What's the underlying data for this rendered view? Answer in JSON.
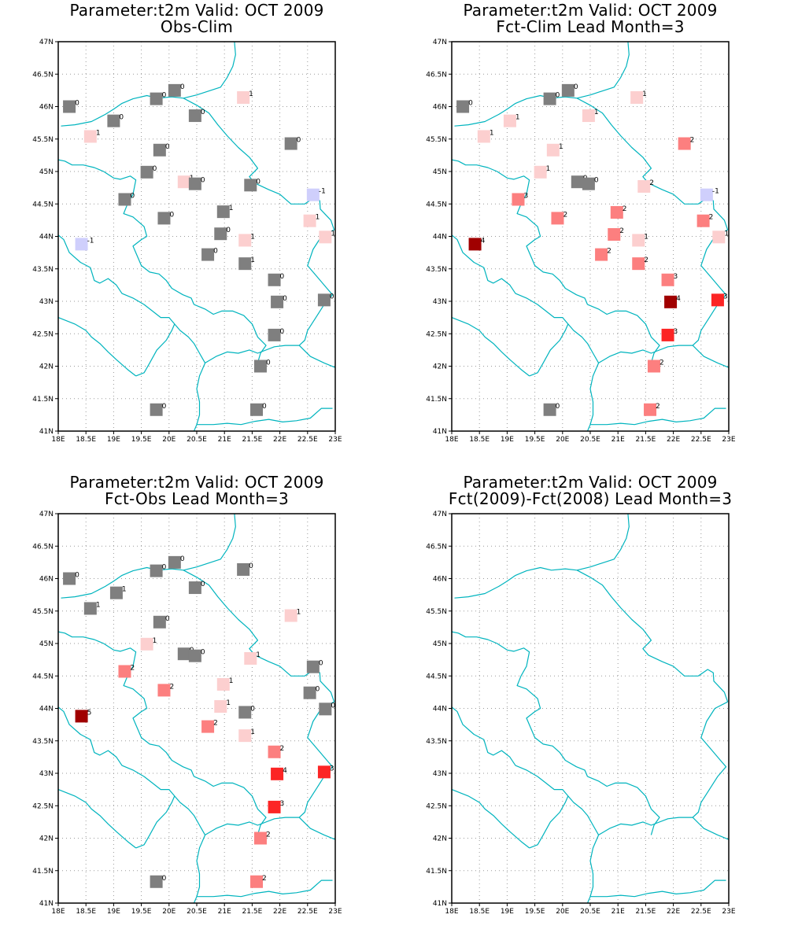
{
  "panels": [
    {
      "title": "Parameter:t2m  Valid: OCT 2009",
      "subtitle": "Obs-Clim",
      "stations": [
        {
          "lon": 18.2,
          "lat": 46.0,
          "v": "0",
          "c": "#7f7f7f"
        },
        {
          "lon": 19.0,
          "lat": 45.78,
          "v": "0",
          "c": "#7f7f7f"
        },
        {
          "lon": 19.77,
          "lat": 46.12,
          "v": "0",
          "c": "#7f7f7f"
        },
        {
          "lon": 20.1,
          "lat": 46.25,
          "v": "0",
          "c": "#7f7f7f"
        },
        {
          "lon": 20.47,
          "lat": 45.86,
          "v": "0",
          "c": "#7f7f7f"
        },
        {
          "lon": 21.34,
          "lat": 46.14,
          "v": "1",
          "c": "#fccfcf"
        },
        {
          "lon": 18.58,
          "lat": 45.54,
          "v": "1",
          "c": "#fccfcf"
        },
        {
          "lon": 19.83,
          "lat": 45.33,
          "v": "0",
          "c": "#7f7f7f"
        },
        {
          "lon": 19.6,
          "lat": 44.99,
          "v": "0",
          "c": "#7f7f7f"
        },
        {
          "lon": 20.27,
          "lat": 44.84,
          "v": "1",
          "c": "#fccfcf"
        },
        {
          "lon": 20.47,
          "lat": 44.81,
          "v": "0",
          "c": "#7f7f7f"
        },
        {
          "lon": 21.47,
          "lat": 44.79,
          "v": "0",
          "c": "#7f7f7f"
        },
        {
          "lon": 22.2,
          "lat": 45.43,
          "v": "0",
          "c": "#7f7f7f"
        },
        {
          "lon": 22.6,
          "lat": 44.64,
          "v": "-1",
          "c": "#cfcffc"
        },
        {
          "lon": 19.2,
          "lat": 44.57,
          "v": "0",
          "c": "#7f7f7f"
        },
        {
          "lon": 19.91,
          "lat": 44.28,
          "v": "0",
          "c": "#7f7f7f"
        },
        {
          "lon": 20.98,
          "lat": 44.38,
          "v": "1",
          "c": "#7f7f7f"
        },
        {
          "lon": 20.93,
          "lat": 44.04,
          "v": "0",
          "c": "#7f7f7f"
        },
        {
          "lon": 21.37,
          "lat": 43.94,
          "v": "1",
          "c": "#fccfcf"
        },
        {
          "lon": 22.54,
          "lat": 44.24,
          "v": "1",
          "c": "#fccfcf"
        },
        {
          "lon": 22.82,
          "lat": 43.99,
          "v": "1",
          "c": "#fccfcf"
        },
        {
          "lon": 18.42,
          "lat": 43.88,
          "v": "-1",
          "c": "#cfcffc"
        },
        {
          "lon": 20.7,
          "lat": 43.72,
          "v": "0",
          "c": "#7f7f7f"
        },
        {
          "lon": 21.37,
          "lat": 43.58,
          "v": "1",
          "c": "#7f7f7f"
        },
        {
          "lon": 21.9,
          "lat": 43.33,
          "v": "0",
          "c": "#7f7f7f"
        },
        {
          "lon": 21.95,
          "lat": 42.99,
          "v": "0",
          "c": "#7f7f7f"
        },
        {
          "lon": 22.8,
          "lat": 43.02,
          "v": "0",
          "c": "#7f7f7f"
        },
        {
          "lon": 21.9,
          "lat": 42.48,
          "v": "0",
          "c": "#7f7f7f"
        },
        {
          "lon": 21.65,
          "lat": 42.0,
          "v": "0",
          "c": "#7f7f7f"
        },
        {
          "lon": 19.77,
          "lat": 41.33,
          "v": "0",
          "c": "#7f7f7f"
        },
        {
          "lon": 21.58,
          "lat": 41.33,
          "v": "0",
          "c": "#7f7f7f"
        }
      ]
    },
    {
      "title": "Parameter:t2m  Valid: OCT 2009",
      "subtitle": "Fct-Clim  Lead Month=3",
      "stations": [
        {
          "lon": 18.2,
          "lat": 46.0,
          "v": "0",
          "c": "#7f7f7f"
        },
        {
          "lon": 19.77,
          "lat": 46.12,
          "v": "0",
          "c": "#7f7f7f"
        },
        {
          "lon": 20.1,
          "lat": 46.25,
          "v": "0",
          "c": "#7f7f7f"
        },
        {
          "lon": 21.34,
          "lat": 46.14,
          "v": "1",
          "c": "#fccfcf"
        },
        {
          "lon": 19.05,
          "lat": 45.78,
          "v": "1",
          "c": "#fccfcf"
        },
        {
          "lon": 20.47,
          "lat": 45.86,
          "v": "1",
          "c": "#fccfcf"
        },
        {
          "lon": 18.58,
          "lat": 45.54,
          "v": "1",
          "c": "#fccfcf"
        },
        {
          "lon": 19.83,
          "lat": 45.33,
          "v": "1",
          "c": "#fccfcf"
        },
        {
          "lon": 22.2,
          "lat": 45.43,
          "v": "2",
          "c": "#fc7f7f"
        },
        {
          "lon": 19.6,
          "lat": 44.99,
          "v": "1",
          "c": "#fccfcf"
        },
        {
          "lon": 20.27,
          "lat": 44.84,
          "v": "0",
          "c": "#7f7f7f"
        },
        {
          "lon": 20.47,
          "lat": 44.81,
          "v": "0",
          "c": "#7f7f7f"
        },
        {
          "lon": 21.47,
          "lat": 44.77,
          "v": "2",
          "c": "#fccfcf"
        },
        {
          "lon": 22.6,
          "lat": 44.64,
          "v": "-1",
          "c": "#cfcffc"
        },
        {
          "lon": 19.2,
          "lat": 44.57,
          "v": "3",
          "c": "#fc7f7f"
        },
        {
          "lon": 19.91,
          "lat": 44.28,
          "v": "2",
          "c": "#fc7f7f"
        },
        {
          "lon": 20.98,
          "lat": 44.37,
          "v": "2",
          "c": "#fc7f7f"
        },
        {
          "lon": 22.54,
          "lat": 44.24,
          "v": "2",
          "c": "#fc7f7f"
        },
        {
          "lon": 20.93,
          "lat": 44.03,
          "v": "2",
          "c": "#fc7f7f"
        },
        {
          "lon": 21.37,
          "lat": 43.94,
          "v": "1",
          "c": "#fccfcf"
        },
        {
          "lon": 22.82,
          "lat": 43.99,
          "v": "1",
          "c": "#fccfcf"
        },
        {
          "lon": 18.42,
          "lat": 43.88,
          "v": "4",
          "c": "#a00000"
        },
        {
          "lon": 20.7,
          "lat": 43.72,
          "v": "2",
          "c": "#fc7f7f"
        },
        {
          "lon": 21.37,
          "lat": 43.58,
          "v": "2",
          "c": "#fc7f7f"
        },
        {
          "lon": 21.9,
          "lat": 43.33,
          "v": "3",
          "c": "#fc7f7f"
        },
        {
          "lon": 21.95,
          "lat": 42.99,
          "v": "4",
          "c": "#a00000"
        },
        {
          "lon": 22.8,
          "lat": 43.02,
          "v": "3",
          "c": "#fc2525"
        },
        {
          "lon": 21.9,
          "lat": 42.48,
          "v": "3",
          "c": "#fc2525"
        },
        {
          "lon": 21.65,
          "lat": 42.0,
          "v": "2",
          "c": "#fc7f7f"
        },
        {
          "lon": 19.77,
          "lat": 41.33,
          "v": "0",
          "c": "#7f7f7f"
        },
        {
          "lon": 21.58,
          "lat": 41.33,
          "v": "2",
          "c": "#fc7f7f"
        }
      ]
    },
    {
      "title": "Parameter:t2m  Valid: OCT 2009",
      "subtitle": "Fct-Obs  Lead Month=3",
      "stations": [
        {
          "lon": 18.2,
          "lat": 46.0,
          "v": "0",
          "c": "#7f7f7f"
        },
        {
          "lon": 19.77,
          "lat": 46.12,
          "v": "0",
          "c": "#7f7f7f"
        },
        {
          "lon": 20.1,
          "lat": 46.25,
          "v": "0",
          "c": "#7f7f7f"
        },
        {
          "lon": 21.34,
          "lat": 46.14,
          "v": "0",
          "c": "#7f7f7f"
        },
        {
          "lon": 19.05,
          "lat": 45.78,
          "v": "1",
          "c": "#7f7f7f"
        },
        {
          "lon": 20.47,
          "lat": 45.86,
          "v": "0",
          "c": "#7f7f7f"
        },
        {
          "lon": 18.58,
          "lat": 45.54,
          "v": "1",
          "c": "#7f7f7f"
        },
        {
          "lon": 22.2,
          "lat": 45.43,
          "v": "1",
          "c": "#fccfcf"
        },
        {
          "lon": 19.83,
          "lat": 45.33,
          "v": "0",
          "c": "#7f7f7f"
        },
        {
          "lon": 19.6,
          "lat": 44.99,
          "v": "1",
          "c": "#fccfcf"
        },
        {
          "lon": 20.27,
          "lat": 44.84,
          "v": "0",
          "c": "#7f7f7f"
        },
        {
          "lon": 20.47,
          "lat": 44.81,
          "v": "0",
          "c": "#7f7f7f"
        },
        {
          "lon": 21.47,
          "lat": 44.77,
          "v": "1",
          "c": "#fccfcf"
        },
        {
          "lon": 22.6,
          "lat": 44.64,
          "v": "0",
          "c": "#7f7f7f"
        },
        {
          "lon": 19.2,
          "lat": 44.57,
          "v": "2",
          "c": "#fc7f7f"
        },
        {
          "lon": 20.98,
          "lat": 44.37,
          "v": "1",
          "c": "#fccfcf"
        },
        {
          "lon": 19.91,
          "lat": 44.28,
          "v": "2",
          "c": "#fc7f7f"
        },
        {
          "lon": 22.54,
          "lat": 44.24,
          "v": "0",
          "c": "#7f7f7f"
        },
        {
          "lon": 20.93,
          "lat": 44.03,
          "v": "1",
          "c": "#fccfcf"
        },
        {
          "lon": 21.37,
          "lat": 43.94,
          "v": "0",
          "c": "#7f7f7f"
        },
        {
          "lon": 22.82,
          "lat": 43.99,
          "v": "0",
          "c": "#7f7f7f"
        },
        {
          "lon": 18.42,
          "lat": 43.88,
          "v": "5",
          "c": "#a00000"
        },
        {
          "lon": 20.7,
          "lat": 43.72,
          "v": "2",
          "c": "#fc7f7f"
        },
        {
          "lon": 21.37,
          "lat": 43.58,
          "v": "1",
          "c": "#fccfcf"
        },
        {
          "lon": 21.9,
          "lat": 43.33,
          "v": "2",
          "c": "#fc7f7f"
        },
        {
          "lon": 21.95,
          "lat": 42.99,
          "v": "4",
          "c": "#fc2525"
        },
        {
          "lon": 22.8,
          "lat": 43.02,
          "v": "3",
          "c": "#fc2525"
        },
        {
          "lon": 21.9,
          "lat": 42.48,
          "v": "3",
          "c": "#fc2525"
        },
        {
          "lon": 21.65,
          "lat": 42.0,
          "v": "2",
          "c": "#fc7f7f"
        },
        {
          "lon": 19.77,
          "lat": 41.33,
          "v": "0",
          "c": "#7f7f7f"
        },
        {
          "lon": 21.58,
          "lat": 41.33,
          "v": "2",
          "c": "#fc7f7f"
        }
      ]
    },
    {
      "title": "Parameter:t2m  Valid: OCT 2009",
      "subtitle": "Fct(2009)-Fct(2008)  Lead Month=3",
      "stations": []
    }
  ],
  "map": {
    "lon_range": [
      18,
      23
    ],
    "lat_range": [
      41,
      47
    ],
    "lon_ticks": [
      "18E",
      "18.5E",
      "19E",
      "19.5E",
      "20E",
      "20.5E",
      "21E",
      "21.5E",
      "22E",
      "22.5E",
      "23E"
    ],
    "lat_ticks": [
      "41N",
      "41.5N",
      "42N",
      "42.5N",
      "43N",
      "43.5N",
      "44N",
      "44.5N",
      "45N",
      "45.5N",
      "46N",
      "46.5N",
      "47N"
    ],
    "gridlines": true,
    "boundary_color": "#00b4be",
    "frame_color": "#000000"
  }
}
